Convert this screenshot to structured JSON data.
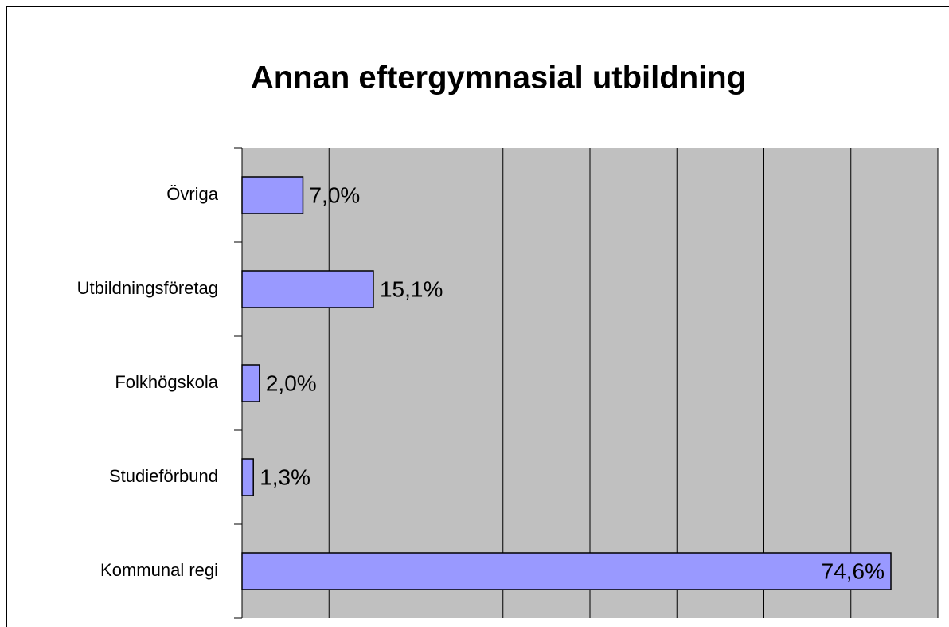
{
  "chart_data": {
    "type": "barh",
    "title": "Annan eftergymnasial utbildning",
    "categories": [
      "Övriga",
      "Utbildningsföretag",
      "Folkhögskola",
      "Studieförbund",
      "Kommunal regi"
    ],
    "values": [
      7.0,
      15.1,
      2.0,
      1.3,
      74.6
    ],
    "value_labels": [
      "7,0%",
      "15,1%",
      "2,0%",
      "1,3%",
      "74,6%"
    ],
    "color": "#9999ff",
    "xlim": [
      0,
      80
    ],
    "xticks": [
      0,
      10,
      20,
      30,
      40,
      50,
      60,
      70,
      80
    ],
    "grid": true
  }
}
